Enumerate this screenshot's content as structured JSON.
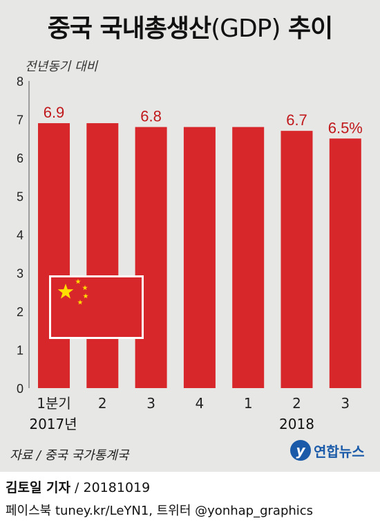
{
  "header": {
    "title_main": "중국 국내총생산",
    "title_paren": "(GDP)",
    "title_tail": " 추이",
    "subtitle": "전년동기 대비"
  },
  "colors": {
    "bar": "#d8272a",
    "label": "#c0181b",
    "panel": "#e7e8e6",
    "flag": "#d8272a",
    "star": "#ffde00",
    "logo": "#1a5aa8"
  },
  "chart_data": {
    "type": "bar",
    "title": "중국 국내총생산(GDP) 추이",
    "ylabel": "전년동기 대비",
    "ylim": [
      0,
      8
    ],
    "yticks": [
      "0",
      "1",
      "2",
      "3",
      "4",
      "5",
      "6",
      "7",
      "8"
    ],
    "categories": [
      "1분기",
      "2",
      "3",
      "4",
      "1",
      "2",
      "3"
    ],
    "year_groups": [
      {
        "label": "2017년",
        "start": 0,
        "end": 3
      },
      {
        "label": "2018",
        "start": 4,
        "end": 6
      }
    ],
    "values": [
      6.9,
      6.9,
      6.8,
      6.8,
      6.8,
      6.7,
      6.5
    ],
    "data_labels": [
      "6.9",
      "",
      "6.8",
      "",
      "",
      "6.7",
      "6.5%"
    ],
    "grid": false,
    "legend": "none"
  },
  "footer": {
    "source": "자료 / 중국 국가통계국",
    "logo_mark": "y",
    "logo_text": "연합뉴스",
    "reporter_name": "김토일 기자",
    "reporter_sep": " / ",
    "date": "20181019",
    "social": "페이스북 tuney.kr/LeYN1, 트위터 @yonhap_graphics"
  }
}
